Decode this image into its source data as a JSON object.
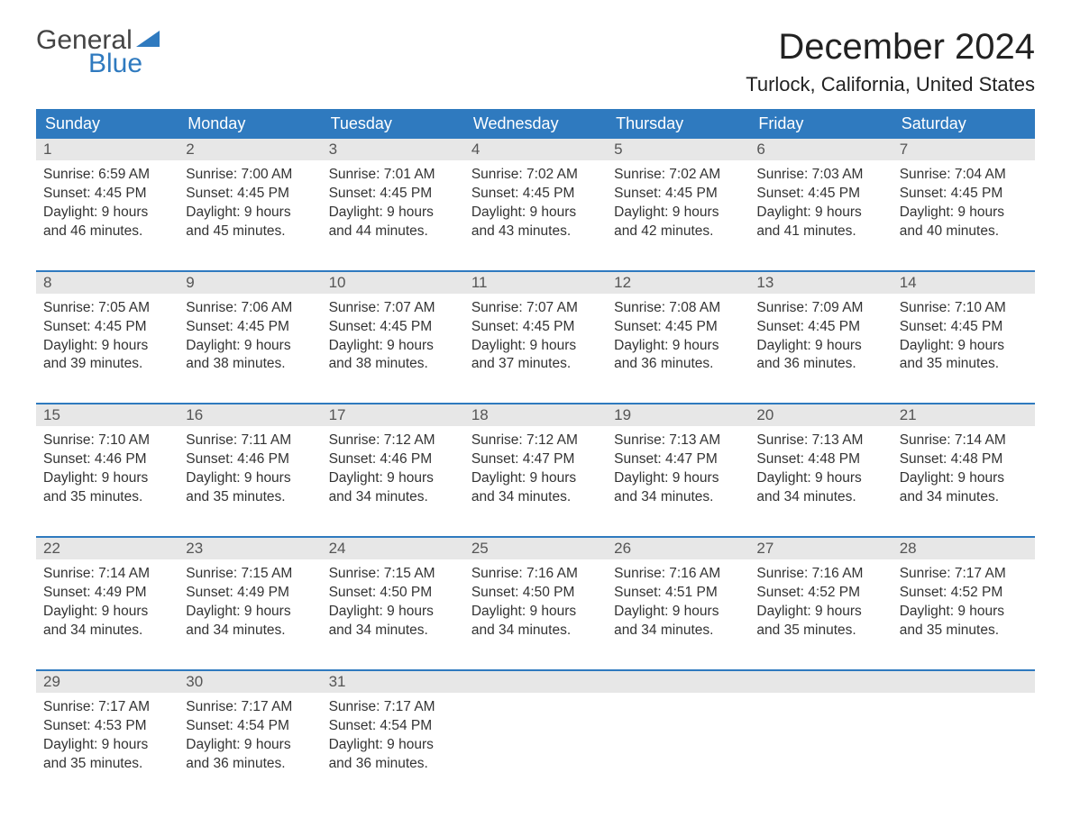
{
  "brand": {
    "line1": "General",
    "line2": "Blue",
    "accent_color": "#2f7abf"
  },
  "title": "December 2024",
  "location": "Turlock, California, United States",
  "columns": [
    "Sunday",
    "Monday",
    "Tuesday",
    "Wednesday",
    "Thursday",
    "Friday",
    "Saturday"
  ],
  "colors": {
    "header_bg": "#2f7abf",
    "header_text": "#ffffff",
    "daynum_bg": "#e7e7e7",
    "daynum_text": "#555555",
    "body_text": "#333333",
    "week_border": "#2f7abf",
    "background": "#ffffff"
  },
  "typography": {
    "title_fontsize": 40,
    "location_fontsize": 22,
    "header_fontsize": 18,
    "daynum_fontsize": 17,
    "body_fontsize": 15.5,
    "font_family": "Arial"
  },
  "weeks": [
    [
      {
        "n": "1",
        "sr": "Sunrise: 6:59 AM",
        "ss": "Sunset: 4:45 PM",
        "d1": "Daylight: 9 hours",
        "d2": "and 46 minutes."
      },
      {
        "n": "2",
        "sr": "Sunrise: 7:00 AM",
        "ss": "Sunset: 4:45 PM",
        "d1": "Daylight: 9 hours",
        "d2": "and 45 minutes."
      },
      {
        "n": "3",
        "sr": "Sunrise: 7:01 AM",
        "ss": "Sunset: 4:45 PM",
        "d1": "Daylight: 9 hours",
        "d2": "and 44 minutes."
      },
      {
        "n": "4",
        "sr": "Sunrise: 7:02 AM",
        "ss": "Sunset: 4:45 PM",
        "d1": "Daylight: 9 hours",
        "d2": "and 43 minutes."
      },
      {
        "n": "5",
        "sr": "Sunrise: 7:02 AM",
        "ss": "Sunset: 4:45 PM",
        "d1": "Daylight: 9 hours",
        "d2": "and 42 minutes."
      },
      {
        "n": "6",
        "sr": "Sunrise: 7:03 AM",
        "ss": "Sunset: 4:45 PM",
        "d1": "Daylight: 9 hours",
        "d2": "and 41 minutes."
      },
      {
        "n": "7",
        "sr": "Sunrise: 7:04 AM",
        "ss": "Sunset: 4:45 PM",
        "d1": "Daylight: 9 hours",
        "d2": "and 40 minutes."
      }
    ],
    [
      {
        "n": "8",
        "sr": "Sunrise: 7:05 AM",
        "ss": "Sunset: 4:45 PM",
        "d1": "Daylight: 9 hours",
        "d2": "and 39 minutes."
      },
      {
        "n": "9",
        "sr": "Sunrise: 7:06 AM",
        "ss": "Sunset: 4:45 PM",
        "d1": "Daylight: 9 hours",
        "d2": "and 38 minutes."
      },
      {
        "n": "10",
        "sr": "Sunrise: 7:07 AM",
        "ss": "Sunset: 4:45 PM",
        "d1": "Daylight: 9 hours",
        "d2": "and 38 minutes."
      },
      {
        "n": "11",
        "sr": "Sunrise: 7:07 AM",
        "ss": "Sunset: 4:45 PM",
        "d1": "Daylight: 9 hours",
        "d2": "and 37 minutes."
      },
      {
        "n": "12",
        "sr": "Sunrise: 7:08 AM",
        "ss": "Sunset: 4:45 PM",
        "d1": "Daylight: 9 hours",
        "d2": "and 36 minutes."
      },
      {
        "n": "13",
        "sr": "Sunrise: 7:09 AM",
        "ss": "Sunset: 4:45 PM",
        "d1": "Daylight: 9 hours",
        "d2": "and 36 minutes."
      },
      {
        "n": "14",
        "sr": "Sunrise: 7:10 AM",
        "ss": "Sunset: 4:45 PM",
        "d1": "Daylight: 9 hours",
        "d2": "and 35 minutes."
      }
    ],
    [
      {
        "n": "15",
        "sr": "Sunrise: 7:10 AM",
        "ss": "Sunset: 4:46 PM",
        "d1": "Daylight: 9 hours",
        "d2": "and 35 minutes."
      },
      {
        "n": "16",
        "sr": "Sunrise: 7:11 AM",
        "ss": "Sunset: 4:46 PM",
        "d1": "Daylight: 9 hours",
        "d2": "and 35 minutes."
      },
      {
        "n": "17",
        "sr": "Sunrise: 7:12 AM",
        "ss": "Sunset: 4:46 PM",
        "d1": "Daylight: 9 hours",
        "d2": "and 34 minutes."
      },
      {
        "n": "18",
        "sr": "Sunrise: 7:12 AM",
        "ss": "Sunset: 4:47 PM",
        "d1": "Daylight: 9 hours",
        "d2": "and 34 minutes."
      },
      {
        "n": "19",
        "sr": "Sunrise: 7:13 AM",
        "ss": "Sunset: 4:47 PM",
        "d1": "Daylight: 9 hours",
        "d2": "and 34 minutes."
      },
      {
        "n": "20",
        "sr": "Sunrise: 7:13 AM",
        "ss": "Sunset: 4:48 PM",
        "d1": "Daylight: 9 hours",
        "d2": "and 34 minutes."
      },
      {
        "n": "21",
        "sr": "Sunrise: 7:14 AM",
        "ss": "Sunset: 4:48 PM",
        "d1": "Daylight: 9 hours",
        "d2": "and 34 minutes."
      }
    ],
    [
      {
        "n": "22",
        "sr": "Sunrise: 7:14 AM",
        "ss": "Sunset: 4:49 PM",
        "d1": "Daylight: 9 hours",
        "d2": "and 34 minutes."
      },
      {
        "n": "23",
        "sr": "Sunrise: 7:15 AM",
        "ss": "Sunset: 4:49 PM",
        "d1": "Daylight: 9 hours",
        "d2": "and 34 minutes."
      },
      {
        "n": "24",
        "sr": "Sunrise: 7:15 AM",
        "ss": "Sunset: 4:50 PM",
        "d1": "Daylight: 9 hours",
        "d2": "and 34 minutes."
      },
      {
        "n": "25",
        "sr": "Sunrise: 7:16 AM",
        "ss": "Sunset: 4:50 PM",
        "d1": "Daylight: 9 hours",
        "d2": "and 34 minutes."
      },
      {
        "n": "26",
        "sr": "Sunrise: 7:16 AM",
        "ss": "Sunset: 4:51 PM",
        "d1": "Daylight: 9 hours",
        "d2": "and 34 minutes."
      },
      {
        "n": "27",
        "sr": "Sunrise: 7:16 AM",
        "ss": "Sunset: 4:52 PM",
        "d1": "Daylight: 9 hours",
        "d2": "and 35 minutes."
      },
      {
        "n": "28",
        "sr": "Sunrise: 7:17 AM",
        "ss": "Sunset: 4:52 PM",
        "d1": "Daylight: 9 hours",
        "d2": "and 35 minutes."
      }
    ],
    [
      {
        "n": "29",
        "sr": "Sunrise: 7:17 AM",
        "ss": "Sunset: 4:53 PM",
        "d1": "Daylight: 9 hours",
        "d2": "and 35 minutes."
      },
      {
        "n": "30",
        "sr": "Sunrise: 7:17 AM",
        "ss": "Sunset: 4:54 PM",
        "d1": "Daylight: 9 hours",
        "d2": "and 36 minutes."
      },
      {
        "n": "31",
        "sr": "Sunrise: 7:17 AM",
        "ss": "Sunset: 4:54 PM",
        "d1": "Daylight: 9 hours",
        "d2": "and 36 minutes."
      },
      null,
      null,
      null,
      null
    ]
  ]
}
